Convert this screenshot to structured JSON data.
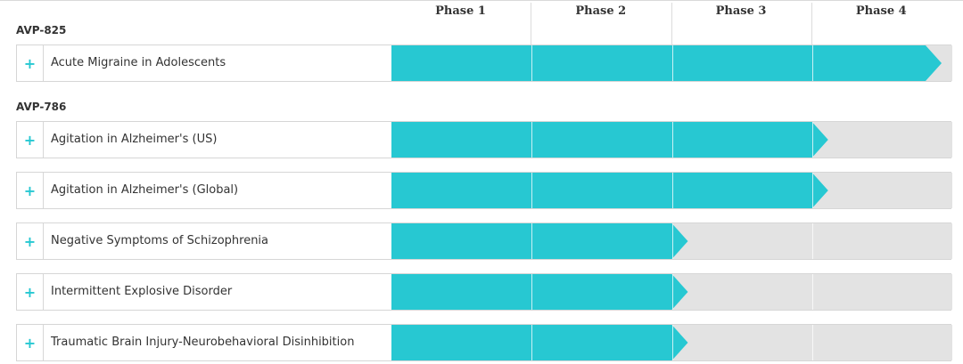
{
  "chart_data": {
    "type": "bar",
    "orientation": "horizontal",
    "phases": [
      "Phase 1",
      "Phase 2",
      "Phase 3",
      "Phase 4"
    ],
    "groups": [
      {
        "name": "AVP-825",
        "rows": [
          {
            "label": "Acute Migraine in Adolescents",
            "phase_reached": 4
          }
        ]
      },
      {
        "name": "AVP-786",
        "rows": [
          {
            "label": "Agitation in Alzheimer's (US)",
            "phase_reached": 3
          },
          {
            "label": "Agitation in Alzheimer's (Global)",
            "phase_reached": 3
          },
          {
            "label": "Negative Symptoms of Schizophrenia",
            "phase_reached": 2
          },
          {
            "label": "Intermittent Explosive Disorder",
            "phase_reached": 2
          },
          {
            "label": "Traumatic Brain Injury-Neurobehavioral Disinhibition",
            "phase_reached": 2
          }
        ]
      }
    ],
    "expand_symbol": "+",
    "colors": {
      "bar": "#27c8d2",
      "track": "#e3e3e3",
      "expand_icon": "#27c8d2"
    },
    "icon": "plus-icon"
  }
}
